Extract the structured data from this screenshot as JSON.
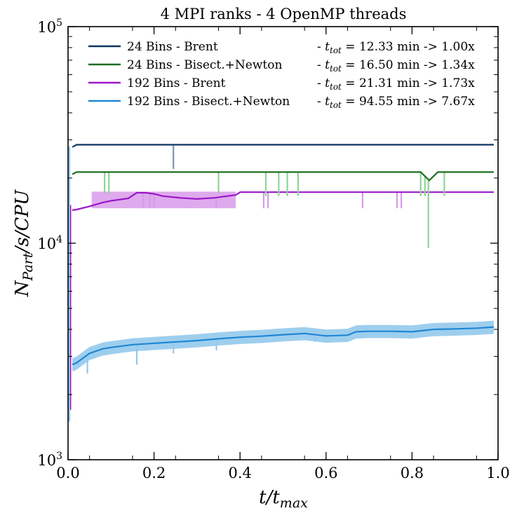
{
  "chart_data": {
    "type": "line",
    "title": "4 MPI ranks - 4 OpenMP threads",
    "xlabel": "t/t_max",
    "ylabel": "N_Part/s/CPU",
    "xlim": [
      0.0,
      1.0
    ],
    "ylim": [
      1000,
      100000
    ],
    "yscale": "log",
    "legend_position": "top",
    "xticks": [
      {
        "value": 0.0,
        "label": "0.0"
      },
      {
        "value": 0.2,
        "label": "0.2"
      },
      {
        "value": 0.4,
        "label": "0.4"
      },
      {
        "value": 0.6,
        "label": "0.6"
      },
      {
        "value": 0.8,
        "label": "0.8"
      },
      {
        "value": 1.0,
        "label": "1.0"
      }
    ],
    "yticks": [
      {
        "value": 1000,
        "base": "10",
        "exp": "3"
      },
      {
        "value": 10000,
        "base": "10",
        "exp": "4"
      },
      {
        "value": 100000,
        "base": "10",
        "exp": "5"
      }
    ],
    "series": [
      {
        "name": "24 Bins - Brent",
        "label_lhs": "24 Bins - Brent",
        "t_tot": "12.33 min -> 1.00x",
        "color": "#0d3561",
        "band_color": "#7f95b0",
        "x": [
          0.01,
          0.02,
          0.1,
          0.2,
          0.3,
          0.4,
          0.5,
          0.6,
          0.7,
          0.8,
          0.9,
          0.99
        ],
        "values": [
          27800,
          28500,
          28500,
          28500,
          28500,
          28500,
          28500,
          28500,
          28500,
          28500,
          28500,
          28500
        ],
        "spikes": [
          {
            "x": 0.245,
            "low": 22000
          }
        ]
      },
      {
        "name": "24 Bins - Bisect.+Newton",
        "label_lhs": "24 Bins - Bisect.+Newton",
        "t_tot": "16.50 min -> 1.34x",
        "color": "#1b6e1f",
        "band_color": "#8fd49a",
        "x": [
          0.01,
          0.02,
          0.1,
          0.2,
          0.3,
          0.4,
          0.5,
          0.6,
          0.7,
          0.8,
          0.82,
          0.84,
          0.86,
          0.9,
          0.99
        ],
        "values": [
          20800,
          21300,
          21300,
          21300,
          21300,
          21300,
          21300,
          21300,
          21300,
          21300,
          21300,
          19500,
          21300,
          21300,
          21300
        ],
        "spikes": [
          {
            "x": 0.085,
            "low": 17000
          },
          {
            "x": 0.095,
            "low": 17000
          },
          {
            "x": 0.35,
            "low": 17000
          },
          {
            "x": 0.46,
            "low": 16500
          },
          {
            "x": 0.49,
            "low": 16500
          },
          {
            "x": 0.51,
            "low": 16500
          },
          {
            "x": 0.535,
            "low": 16500
          },
          {
            "x": 0.82,
            "low": 16500
          },
          {
            "x": 0.83,
            "low": 16500
          },
          {
            "x": 0.838,
            "low": 9500
          },
          {
            "x": 0.875,
            "low": 16500
          }
        ]
      },
      {
        "name": "192 Bins - Brent",
        "label_lhs": "192 Bins - Brent",
        "t_tot": "21.31 min -> 1.73x",
        "color": "#9b17c8",
        "band_color": "#d89bea",
        "x": [
          0.01,
          0.02,
          0.05,
          0.08,
          0.1,
          0.14,
          0.16,
          0.18,
          0.2,
          0.22,
          0.26,
          0.3,
          0.34,
          0.37,
          0.39,
          0.4,
          0.45,
          0.5,
          0.6,
          0.7,
          0.8,
          0.9,
          0.99
        ],
        "values": [
          14200,
          14300,
          14800,
          15400,
          15700,
          16100,
          17100,
          17100,
          16900,
          16500,
          16200,
          16000,
          16200,
          16500,
          16700,
          17200,
          17200,
          17200,
          17200,
          17200,
          17200,
          17200,
          17200
        ],
        "band": [
          {
            "x": 0.055,
            "low": 14500,
            "high": 17300
          },
          {
            "x": 0.39,
            "low": 14500,
            "high": 17300
          }
        ],
        "spikes": [
          {
            "x": 0.175,
            "low": 14500
          },
          {
            "x": 0.19,
            "low": 14500
          },
          {
            "x": 0.2,
            "low": 14500
          },
          {
            "x": 0.345,
            "low": 14500
          },
          {
            "x": 0.455,
            "low": 14500
          },
          {
            "x": 0.465,
            "low": 14500
          },
          {
            "x": 0.685,
            "low": 14500
          },
          {
            "x": 0.765,
            "low": 14500
          },
          {
            "x": 0.775,
            "low": 14500
          }
        ]
      },
      {
        "name": "192 Bins - Bisect.+Newton",
        "label_lhs": "192 Bins - Bisect.+Newton",
        "t_tot": "94.55 min -> 7.67x",
        "color": "#1f86d4",
        "band_color": "#93c9ec",
        "x": [
          0.01,
          0.02,
          0.03,
          0.05,
          0.08,
          0.1,
          0.15,
          0.2,
          0.25,
          0.3,
          0.35,
          0.4,
          0.45,
          0.5,
          0.55,
          0.6,
          0.65,
          0.67,
          0.7,
          0.75,
          0.8,
          0.85,
          0.9,
          0.95,
          0.99
        ],
        "values": [
          2750,
          2800,
          2900,
          3100,
          3250,
          3300,
          3400,
          3450,
          3500,
          3550,
          3620,
          3680,
          3720,
          3780,
          3830,
          3730,
          3760,
          3900,
          3920,
          3920,
          3900,
          4000,
          4020,
          4050,
          4100
        ],
        "band_low": 0.93,
        "band_high": 1.07,
        "spikes": [
          {
            "x": 0.045,
            "low": 2500
          },
          {
            "x": 0.16,
            "low": 2750
          },
          {
            "x": 0.245,
            "low": 3100
          },
          {
            "x": 0.345,
            "low": 3200
          },
          {
            "x": 0.575,
            "low": 3500
          }
        ]
      }
    ]
  }
}
